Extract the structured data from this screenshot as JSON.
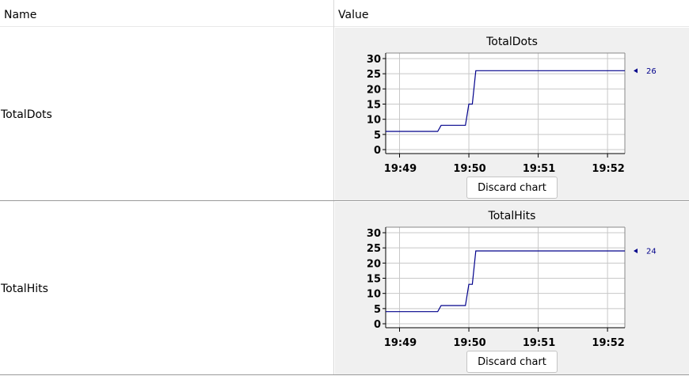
{
  "table": {
    "columns": {
      "name": "Name",
      "value": "Value"
    },
    "rows": [
      {
        "name": "TotalDots",
        "discard_label": "Discard chart",
        "chart_data": {
          "type": "line",
          "title": "TotalDots",
          "xlabel": "",
          "ylabel": "",
          "ylim": [
            0,
            30
          ],
          "yticks": [
            "0",
            "5",
            "10",
            "15",
            "20",
            "25",
            "30"
          ],
          "xticks": [
            "19:49",
            "19:50",
            "19:51",
            "19:52"
          ],
          "x": [
            "19:48.80",
            "19:49.55",
            "19:49.60",
            "19:49.95",
            "19:50.00",
            "19:50.05",
            "19:50.10",
            "19:50.15",
            "19:52.25"
          ],
          "series": [
            {
              "values": [
                6,
                6,
                8,
                8,
                15,
                15,
                26,
                26,
                26
              ],
              "color": "#00008b"
            }
          ],
          "last_value_label": "26",
          "grid": true
        }
      },
      {
        "name": "TotalHits",
        "discard_label": "Discard chart",
        "chart_data": {
          "type": "line",
          "title": "TotalHits",
          "xlabel": "",
          "ylabel": "",
          "ylim": [
            0,
            30
          ],
          "yticks": [
            "0",
            "5",
            "10",
            "15",
            "20",
            "25",
            "30"
          ],
          "xticks": [
            "19:49",
            "19:50",
            "19:51",
            "19:52"
          ],
          "x": [
            "19:48.80",
            "19:49.55",
            "19:49.60",
            "19:49.95",
            "19:50.00",
            "19:50.05",
            "19:50.10",
            "19:50.15",
            "19:52.25"
          ],
          "series": [
            {
              "values": [
                4,
                4,
                6,
                6,
                13,
                13,
                24,
                24,
                24
              ],
              "color": "#00008b"
            }
          ],
          "last_value_label": "24",
          "grid": true
        }
      }
    ]
  }
}
